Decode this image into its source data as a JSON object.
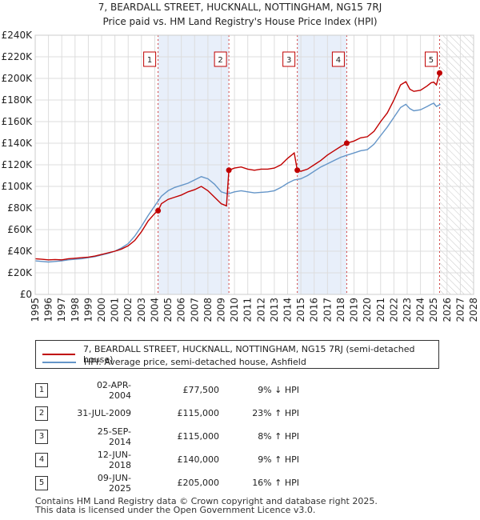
{
  "title_line1": "7, BEARDALL STREET, HUCKNALL, NOTTINGHAM, NG15 7RJ",
  "title_line2": "Price paid vs. HM Land Registry's House Price Index (HPI)",
  "chart_data": {
    "type": "line",
    "title": "Price paid vs. HM Land Registry's House Price Index (HPI)",
    "xlim": [
      1995,
      2028
    ],
    "ylim": [
      0,
      240000
    ],
    "x_ticks": [
      1995,
      1996,
      1997,
      1998,
      1999,
      2000,
      2001,
      2002,
      2003,
      2004,
      2005,
      2006,
      2007,
      2008,
      2009,
      2010,
      2011,
      2012,
      2013,
      2014,
      2015,
      2016,
      2017,
      2018,
      2019,
      2020,
      2021,
      2022,
      2023,
      2024,
      2025,
      2026,
      2027,
      2028
    ],
    "y_ticks": [
      0,
      20000,
      40000,
      60000,
      80000,
      100000,
      120000,
      140000,
      160000,
      180000,
      200000,
      220000,
      240000
    ],
    "y_tick_labels": [
      "£0",
      "£20K",
      "£40K",
      "£60K",
      "£80K",
      "£100K",
      "£120K",
      "£140K",
      "£160K",
      "£180K",
      "£200K",
      "£220K",
      "£240K"
    ],
    "hatch_from": 2025.45,
    "series": [
      {
        "name": "7, BEARDALL STREET, HUCKNALL, NOTTINGHAM, NG15 7RJ (semi-detached house)",
        "color": "#c00000",
        "points": [
          [
            1995.0,
            33000
          ],
          [
            1995.5,
            32500
          ],
          [
            1996.0,
            32000
          ],
          [
            1996.5,
            32300
          ],
          [
            1997.0,
            32000
          ],
          [
            1997.5,
            33000
          ],
          [
            1998.0,
            33500
          ],
          [
            1998.5,
            34000
          ],
          [
            1999.0,
            34500
          ],
          [
            1999.5,
            35500
          ],
          [
            2000.0,
            37000
          ],
          [
            2000.5,
            38500
          ],
          [
            2001.0,
            40000
          ],
          [
            2001.5,
            42000
          ],
          [
            2002.0,
            45000
          ],
          [
            2002.5,
            50000
          ],
          [
            2003.0,
            58000
          ],
          [
            2003.5,
            68000
          ],
          [
            2004.0,
            75000
          ],
          [
            2004.25,
            77500
          ],
          [
            2004.5,
            84000
          ],
          [
            2005.0,
            88000
          ],
          [
            2005.5,
            90000
          ],
          [
            2006.0,
            92000
          ],
          [
            2006.5,
            95000
          ],
          [
            2007.0,
            97000
          ],
          [
            2007.5,
            100000
          ],
          [
            2008.0,
            96000
          ],
          [
            2008.5,
            90000
          ],
          [
            2009.0,
            84000
          ],
          [
            2009.4,
            82000
          ],
          [
            2009.58,
            115000
          ],
          [
            2010.0,
            117000
          ],
          [
            2010.5,
            118000
          ],
          [
            2011.0,
            116000
          ],
          [
            2011.5,
            115000
          ],
          [
            2012.0,
            116000
          ],
          [
            2012.5,
            116000
          ],
          [
            2013.0,
            117000
          ],
          [
            2013.5,
            120000
          ],
          [
            2014.0,
            126000
          ],
          [
            2014.5,
            131000
          ],
          [
            2014.73,
            115000
          ],
          [
            2015.0,
            114000
          ],
          [
            2015.5,
            116000
          ],
          [
            2016.0,
            120000
          ],
          [
            2016.5,
            124000
          ],
          [
            2017.0,
            129000
          ],
          [
            2017.5,
            133000
          ],
          [
            2018.0,
            137000
          ],
          [
            2018.45,
            140000
          ],
          [
            2019.0,
            142000
          ],
          [
            2019.5,
            145000
          ],
          [
            2020.0,
            146000
          ],
          [
            2020.5,
            151000
          ],
          [
            2021.0,
            160000
          ],
          [
            2021.5,
            168000
          ],
          [
            2022.0,
            180000
          ],
          [
            2022.5,
            194000
          ],
          [
            2022.9,
            197000
          ],
          [
            2023.2,
            190000
          ],
          [
            2023.5,
            188000
          ],
          [
            2024.0,
            189000
          ],
          [
            2024.5,
            193000
          ],
          [
            2024.8,
            196000
          ],
          [
            2025.0,
            196500
          ],
          [
            2025.2,
            194000
          ],
          [
            2025.44,
            205000
          ]
        ]
      },
      {
        "name": "HPI: Average price, semi-detached house, Ashfield",
        "color": "#6495c8",
        "points": [
          [
            1995.0,
            31000
          ],
          [
            1995.5,
            30500
          ],
          [
            1996.0,
            30000
          ],
          [
            1996.5,
            30500
          ],
          [
            1997.0,
            31000
          ],
          [
            1997.5,
            32000
          ],
          [
            1998.0,
            32500
          ],
          [
            1998.5,
            33000
          ],
          [
            1999.0,
            34000
          ],
          [
            1999.5,
            35000
          ],
          [
            2000.0,
            36500
          ],
          [
            2000.5,
            38000
          ],
          [
            2001.0,
            40000
          ],
          [
            2001.5,
            43000
          ],
          [
            2002.0,
            47000
          ],
          [
            2002.5,
            54000
          ],
          [
            2003.0,
            63000
          ],
          [
            2003.5,
            73000
          ],
          [
            2004.0,
            82000
          ],
          [
            2004.5,
            91000
          ],
          [
            2005.0,
            96000
          ],
          [
            2005.5,
            99000
          ],
          [
            2006.0,
            101000
          ],
          [
            2006.5,
            103000
          ],
          [
            2007.0,
            106000
          ],
          [
            2007.5,
            109000
          ],
          [
            2008.0,
            107000
          ],
          [
            2008.5,
            102000
          ],
          [
            2009.0,
            95000
          ],
          [
            2009.5,
            93000
          ],
          [
            2010.0,
            95000
          ],
          [
            2010.5,
            96000
          ],
          [
            2011.0,
            95000
          ],
          [
            2011.5,
            94000
          ],
          [
            2012.0,
            94500
          ],
          [
            2012.5,
            95000
          ],
          [
            2013.0,
            96000
          ],
          [
            2013.5,
            99000
          ],
          [
            2014.0,
            103000
          ],
          [
            2014.5,
            106000
          ],
          [
            2015.0,
            107000
          ],
          [
            2015.5,
            110000
          ],
          [
            2016.0,
            114000
          ],
          [
            2016.5,
            118000
          ],
          [
            2017.0,
            121000
          ],
          [
            2017.5,
            124000
          ],
          [
            2018.0,
            127000
          ],
          [
            2018.5,
            129000
          ],
          [
            2019.0,
            131000
          ],
          [
            2019.5,
            133000
          ],
          [
            2020.0,
            134000
          ],
          [
            2020.5,
            139000
          ],
          [
            2021.0,
            147000
          ],
          [
            2021.5,
            155000
          ],
          [
            2022.0,
            164000
          ],
          [
            2022.5,
            173000
          ],
          [
            2022.9,
            176000
          ],
          [
            2023.2,
            172000
          ],
          [
            2023.5,
            170000
          ],
          [
            2024.0,
            171000
          ],
          [
            2024.5,
            174000
          ],
          [
            2024.8,
            176000
          ],
          [
            2025.0,
            177000
          ],
          [
            2025.2,
            174000
          ],
          [
            2025.5,
            176000
          ]
        ]
      }
    ],
    "sales": [
      {
        "num": "1",
        "x": 2004.25,
        "price": 77500
      },
      {
        "num": "2",
        "x": 2009.58,
        "price": 115000
      },
      {
        "num": "3",
        "x": 2014.73,
        "price": 115000
      },
      {
        "num": "4",
        "x": 2018.45,
        "price": 140000
      },
      {
        "num": "5",
        "x": 2025.44,
        "price": 205000
      }
    ]
  },
  "legend": {
    "property_label": "7, BEARDALL STREET, HUCKNALL, NOTTINGHAM, NG15 7RJ (semi-detached house)",
    "property_color": "#c00000",
    "hpi_label": "HPI: Average price, semi-detached house, Ashfield",
    "hpi_color": "#6495c8"
  },
  "table": [
    {
      "num": "1",
      "date": "02-APR-2004",
      "price": "£77,500",
      "hpi": "9% ↓ HPI"
    },
    {
      "num": "2",
      "date": "31-JUL-2009",
      "price": "£115,000",
      "hpi": "23% ↑ HPI"
    },
    {
      "num": "3",
      "date": "25-SEP-2014",
      "price": "£115,000",
      "hpi": "8% ↑ HPI"
    },
    {
      "num": "4",
      "date": "12-JUN-2018",
      "price": "£140,000",
      "hpi": "9% ↑ HPI"
    },
    {
      "num": "5",
      "date": "09-JUN-2025",
      "price": "£205,000",
      "hpi": "16% ↑ HPI"
    }
  ],
  "footer_line1": "Contains HM Land Registry data © Crown copyright and database right 2025.",
  "footer_line2": "This data is licensed under the Open Government Licence v3.0."
}
